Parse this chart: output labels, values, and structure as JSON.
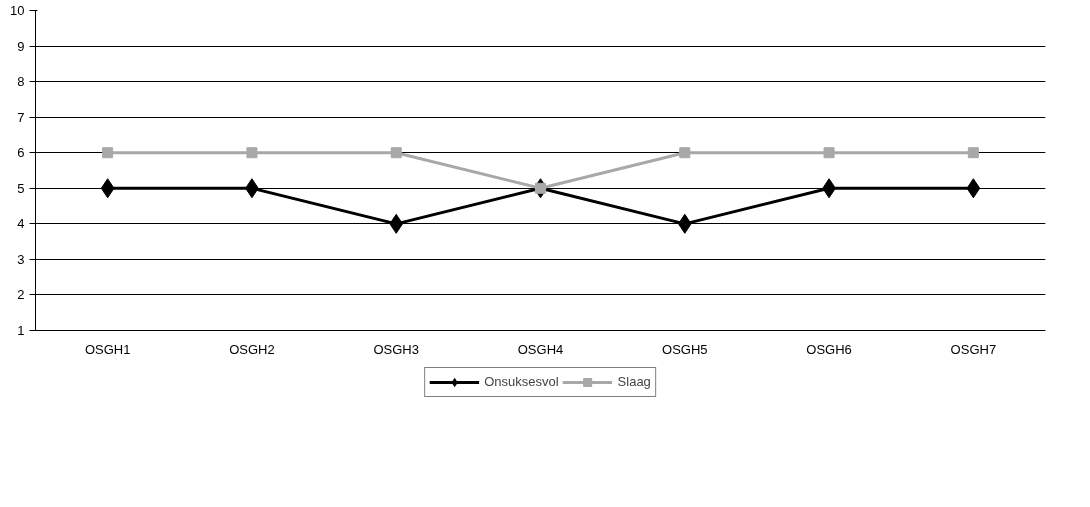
{
  "chart_data": {
    "type": "line",
    "categories": [
      "OSGH1",
      "OSGH2",
      "OSGH3",
      "OSGH4",
      "OSGH5",
      "OSGH6",
      "OSGH7"
    ],
    "series": [
      {
        "name": "Onsuksesvol",
        "color": "#000000",
        "marker": "diamond",
        "values": [
          5,
          5,
          4,
          5,
          4,
          5,
          5
        ]
      },
      {
        "name": "Slaag",
        "color": "#a8a8a8",
        "marker": "square",
        "values": [
          6,
          6,
          6,
          5,
          6,
          6,
          6
        ]
      }
    ],
    "ylim": [
      1,
      10
    ],
    "yticks": [
      1,
      2,
      3,
      4,
      5,
      6,
      7,
      8,
      9,
      10
    ],
    "grid": "y",
    "legend": "bottom"
  }
}
